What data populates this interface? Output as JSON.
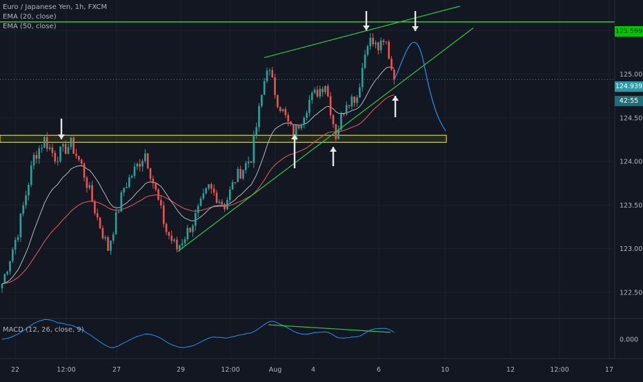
{
  "legend": {
    "symbol": "Euro / Japanese Yen, 1h, FXCM",
    "ema20": "EMA (20, close)",
    "ema50": "EMA (50, close)",
    "macd": "MACD (12, 26, close, 9)"
  },
  "price_tags": {
    "resistance": "125.599",
    "last": "124.939",
    "countdown": "42:55"
  },
  "colors": {
    "background": "#131722",
    "up": "#26a69a",
    "down": "#ef5350",
    "ema20": "#c8ccd0",
    "ema50": "#e05555",
    "trendline": "#2ecc40",
    "projection": "#2196f3",
    "support_zone": "#f5f542"
  },
  "chart_data": [
    {
      "type": "candlestick",
      "symbol": "EURJPY",
      "timeframe": "1h",
      "y_ticks": [
        122.5,
        123.0,
        123.5,
        124.0,
        124.5,
        125.0,
        125.5
      ],
      "y_tick_labels": [
        "122.500",
        "123.000",
        "123.500",
        "124.000",
        "124.500",
        "125.000",
        "125.500"
      ],
      "ylim": [
        122.2,
        125.85
      ],
      "x_tick_labels": [
        "22",
        "12:00",
        "27",
        "29",
        "12:00",
        "Aug",
        "4",
        "6",
        "10",
        "12",
        "12:00",
        "17"
      ],
      "x_ticks": [
        22,
        96,
        169,
        262,
        334,
        399,
        454,
        549,
        645,
        740,
        811,
        883
      ],
      "anchors": [
        {
          "i": 0,
          "p": 122.6
        },
        {
          "i": 6,
          "p": 123.2
        },
        {
          "i": 12,
          "p": 124.05
        },
        {
          "i": 16,
          "p": 124.25
        },
        {
          "i": 20,
          "p": 124.05
        },
        {
          "i": 26,
          "p": 124.2
        },
        {
          "i": 30,
          "p": 123.95
        },
        {
          "i": 36,
          "p": 123.35
        },
        {
          "i": 40,
          "p": 123.0
        },
        {
          "i": 46,
          "p": 123.7
        },
        {
          "i": 54,
          "p": 124.1
        },
        {
          "i": 62,
          "p": 123.2
        },
        {
          "i": 66,
          "p": 123.0
        },
        {
          "i": 72,
          "p": 123.3
        },
        {
          "i": 78,
          "p": 123.7
        },
        {
          "i": 84,
          "p": 123.5
        },
        {
          "i": 88,
          "p": 123.8
        },
        {
          "i": 94,
          "p": 124.05
        },
        {
          "i": 100,
          "p": 125.1
        },
        {
          "i": 104,
          "p": 124.7
        },
        {
          "i": 110,
          "p": 124.3
        },
        {
          "i": 116,
          "p": 124.7
        },
        {
          "i": 122,
          "p": 124.9
        },
        {
          "i": 126,
          "p": 124.3
        },
        {
          "i": 130,
          "p": 124.7
        },
        {
          "i": 134,
          "p": 124.75
        },
        {
          "i": 138,
          "p": 125.4
        },
        {
          "i": 142,
          "p": 125.3
        },
        {
          "i": 145,
          "p": 125.35
        },
        {
          "i": 148,
          "p": 124.939
        }
      ],
      "support_zone": [
        124.22,
        124.3
      ],
      "resistance_level": 125.599,
      "last_price": 124.939
    },
    {
      "type": "line",
      "name": "MACD (12, 26, close, 9)",
      "y_ticks": [
        0.0
      ],
      "y_tick_labels": [
        "0.000"
      ]
    }
  ]
}
